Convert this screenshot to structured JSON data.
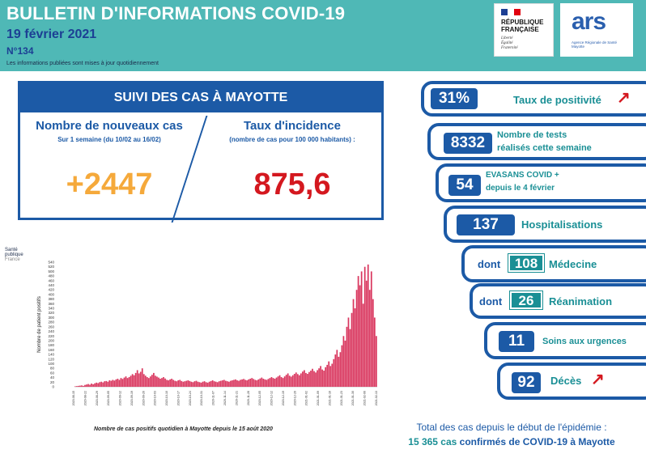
{
  "header": {
    "title": "BULLETIN D'INFORMATIONS COVID-19",
    "date": "19 février 2021",
    "number": "N°134",
    "note": "Les informations publiées sont mises à jour quotidiennement"
  },
  "logos": {
    "rf_line1": "RÉPUBLIQUE",
    "rf_line2": "FRANÇAISE",
    "rf_motto1": "Liberté",
    "rf_motto2": "Égalité",
    "rf_motto3": "Fraternité",
    "ars": "ars",
    "ars_sub1": "Agence Régionale de Santé",
    "ars_sub2": "Mayotte",
    "sp1": "Santé",
    "sp2": "publique",
    "sp3": "France"
  },
  "cases": {
    "heading": "SUIVI DES CAS À MAYOTTE",
    "new_title": "Nombre de nouveaux cas",
    "new_sub": "Sur 1 semaine (du 10/02 au 16/02)",
    "new_value": "+2447",
    "inc_title": "Taux d'incidence",
    "inc_sub": "(nombre de cas pour 100 000 habitants) :",
    "inc_value": "875,6"
  },
  "indicators": {
    "positivity_value": "31%",
    "positivity_label": "Taux de positivité",
    "tests_value": "8332",
    "tests_label1": "Nombre de tests",
    "tests_label2": "réalisés cette semaine",
    "evasans_value": "54",
    "evasans_label1": "EVASANS COVID +",
    "evasans_label2": "depuis le 4 février",
    "hosp_value": "137",
    "hosp_label": "Hospitalisations",
    "dont": "dont",
    "med_value": "108",
    "med_label": "Médecine",
    "rea_value": "26",
    "rea_label": "Réanimation",
    "urg_value": "11",
    "urg_label": "Soins aux urgences",
    "deces_value": "92",
    "deces_label": "Décès",
    "trend_arrow": "↗"
  },
  "totals": {
    "line1": "Total des cas depuis le début de l'épidémie :",
    "count": "15 365 cas",
    "line2_rest": "confirmés de COVID-19 à Mayotte"
  },
  "chart_caption": "Nombre de cas positifs quotidien à Mayotte depuis le 15 août 2020",
  "chart_data": {
    "type": "bar",
    "title": "",
    "ylabel": "Nombre de patient positifs",
    "xlabel": "",
    "ylim": [
      0,
      540
    ],
    "yticks": [
      0,
      20,
      40,
      60,
      80,
      100,
      120,
      140,
      160,
      180,
      200,
      220,
      240,
      260,
      280,
      300,
      320,
      340,
      360,
      380,
      400,
      420,
      440,
      460,
      480,
      500,
      520,
      540
    ],
    "color": "#d9365e",
    "values": [
      2,
      3,
      4,
      5,
      6,
      4,
      8,
      10,
      12,
      9,
      14,
      11,
      15,
      18,
      16,
      20,
      22,
      19,
      24,
      25,
      22,
      28,
      26,
      30,
      27,
      32,
      35,
      30,
      38,
      34,
      40,
      45,
      38,
      42,
      48,
      55,
      50,
      60,
      72,
      58,
      65,
      80,
      55,
      48,
      42,
      38,
      45,
      52,
      60,
      48,
      44,
      40,
      35,
      38,
      42,
      36,
      30,
      28,
      32,
      35,
      30,
      26,
      24,
      28,
      30,
      25,
      22,
      24,
      26,
      28,
      25,
      22,
      20,
      24,
      26,
      22,
      20,
      18,
      22,
      24,
      20,
      18,
      22,
      25,
      28,
      24,
      22,
      20,
      24,
      26,
      28,
      30,
      26,
      24,
      22,
      26,
      28,
      30,
      32,
      28,
      26,
      30,
      32,
      34,
      30,
      28,
      32,
      35,
      38,
      34,
      30,
      28,
      32,
      36,
      40,
      35,
      32,
      30,
      34,
      38,
      42,
      38,
      35,
      40,
      45,
      50,
      42,
      38,
      45,
      52,
      58,
      48,
      44,
      50,
      56,
      62,
      55,
      50,
      58,
      66,
      72,
      60,
      56,
      64,
      70,
      78,
      68,
      62,
      72,
      80,
      90,
      75,
      70,
      85,
      95,
      110,
      90,
      100,
      120,
      140,
      160,
      130,
      150,
      180,
      220,
      200,
      260,
      300,
      250,
      320,
      380,
      340,
      420,
      480,
      440,
      500,
      360,
      520,
      460,
      530,
      420,
      500,
      380,
      300,
      220
    ],
    "x_tick_labels": [
      "2020-08-15",
      "2020-08-22",
      "2020-08-29",
      "2020-09-05",
      "2020-09-12",
      "2020-09-19",
      "2020-09-26",
      "2020-10-03",
      "2020-10-10",
      "2020-10-17",
      "2020-10-24",
      "2020-10-31",
      "2020-11-07",
      "2020-11-14",
      "2020-11-21",
      "2020-11-28",
      "2020-12-05",
      "2020-12-12",
      "2020-12-19",
      "2020-12-26",
      "2021-01-02",
      "2021-01-09",
      "2021-01-16",
      "2021-01-23",
      "2021-01-30",
      "2021-02-06",
      "2021-02-13"
    ]
  }
}
